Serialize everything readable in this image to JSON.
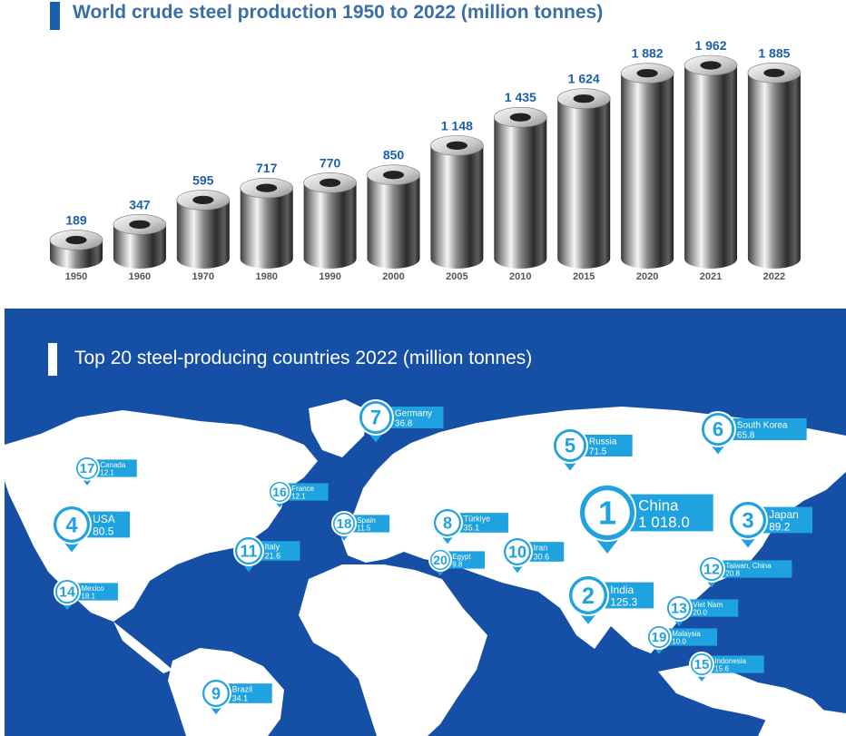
{
  "chart_title": "World crude steel production 1950 to 2022 (million tonnes)",
  "map_title": "Top 20 steel-producing countries 2022 (million tonnes)",
  "colors": {
    "accent": "#1c5fb0",
    "value_text": "#1d5fa8",
    "map_bg": "#1650a6",
    "marker": "#1fa2e0"
  },
  "chart_data": [
    {
      "type": "bar",
      "title": "World crude steel production 1950 to 2022 (million tonnes)",
      "categories": [
        "1950",
        "1960",
        "1970",
        "1980",
        "1990",
        "2000",
        "2005",
        "2010",
        "2015",
        "2020",
        "2021",
        "2022"
      ],
      "values": [
        189,
        347,
        595,
        717,
        770,
        850,
        1148,
        1435,
        1624,
        1882,
        1962,
        1885
      ],
      "value_labels": [
        "189",
        "347",
        "595",
        "717",
        "770",
        "850",
        "1 148",
        "1 435",
        "1 624",
        "1 882",
        "1 962",
        "1 885"
      ],
      "xlabel": "",
      "ylabel": "",
      "grid": false
    },
    {
      "type": "table",
      "title": "Top 20 steel-producing countries 2022 (million tonnes)",
      "rows": [
        {
          "rank": "1",
          "country": "China",
          "value": "1 018.0"
        },
        {
          "rank": "2",
          "country": "India",
          "value": "125.3"
        },
        {
          "rank": "3",
          "country": "Japan",
          "value": "89.2"
        },
        {
          "rank": "4",
          "country": "USA",
          "value": "80.5"
        },
        {
          "rank": "5",
          "country": "Russia",
          "value": "71.5"
        },
        {
          "rank": "6",
          "country": "South Korea",
          "value": "65.8"
        },
        {
          "rank": "7",
          "country": "Germany",
          "value": "36.8"
        },
        {
          "rank": "8",
          "country": "Türkiye",
          "value": "35.1"
        },
        {
          "rank": "9",
          "country": "Brazil",
          "value": "34.1"
        },
        {
          "rank": "10",
          "country": "Iran",
          "value": "30.6"
        },
        {
          "rank": "11",
          "country": "Italy",
          "value": "21.6"
        },
        {
          "rank": "12",
          "country": "Taiwan, China",
          "value": "20.8"
        },
        {
          "rank": "13",
          "country": "Viet Nam",
          "value": "20.0"
        },
        {
          "rank": "14",
          "country": "Mexico",
          "value": "18.1"
        },
        {
          "rank": "15",
          "country": "Indonesia",
          "value": "15.6"
        },
        {
          "rank": "16",
          "country": "France",
          "value": "12.1"
        },
        {
          "rank": "17",
          "country": "Canada",
          "value": "12.1"
        },
        {
          "rank": "18",
          "country": "Spain",
          "value": "11.5"
        },
        {
          "rank": "19",
          "country": "Malaysia",
          "value": "10.0"
        },
        {
          "rank": "20",
          "country": "Egypt",
          "value": "9.8"
        }
      ]
    }
  ]
}
